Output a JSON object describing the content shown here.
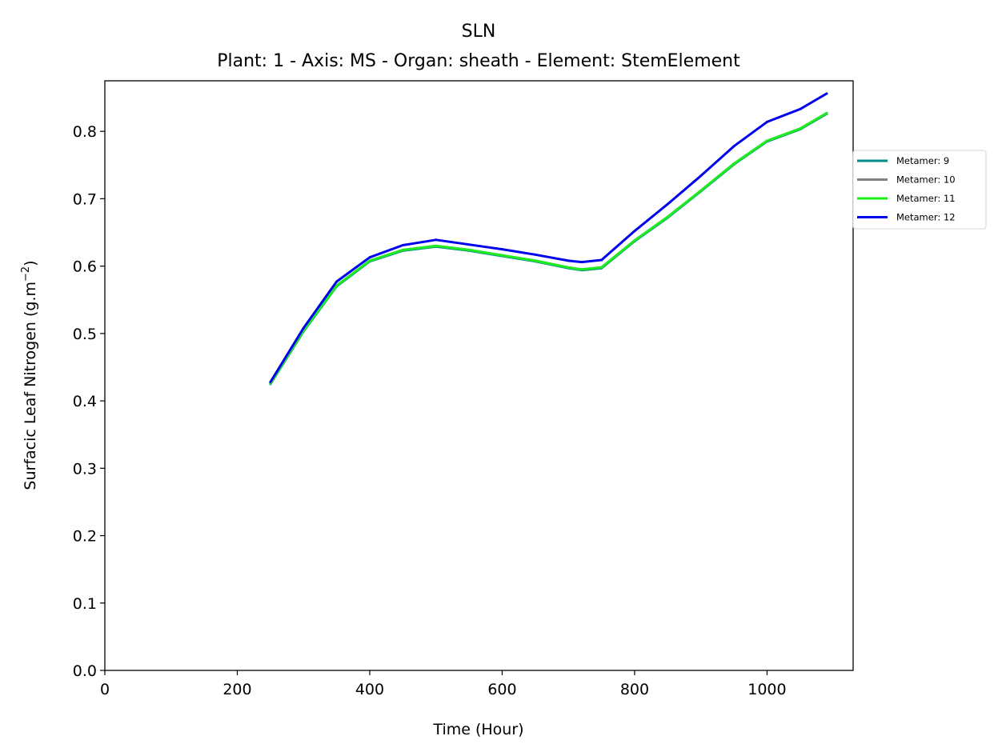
{
  "chart_data": {
    "type": "line",
    "title": "SLN",
    "subtitle": "Plant: 1 - Axis: MS - Organ: sheath - Element: StemElement",
    "xlabel": "Time (Hour)",
    "ylabel_main": "Surfacic Leaf Nitrogen (g.m",
    "ylabel_sup": "−2",
    "ylabel_end": ")",
    "xlim": [
      0,
      1130
    ],
    "ylim": [
      0,
      0.875
    ],
    "xticks": [
      0,
      200,
      400,
      600,
      800,
      1000
    ],
    "yticks": [
      0.0,
      0.1,
      0.2,
      0.3,
      0.4,
      0.5,
      0.6,
      0.7,
      0.8
    ],
    "xtick_labels": [
      "0",
      "200",
      "400",
      "600",
      "800",
      "1000"
    ],
    "ytick_labels": [
      "0.0",
      "0.1",
      "0.2",
      "0.3",
      "0.4",
      "0.5",
      "0.6",
      "0.7",
      "0.8"
    ],
    "grid": false,
    "legend_position": "outside right, upper",
    "x": [
      250,
      300,
      350,
      400,
      450,
      500,
      550,
      600,
      650,
      700,
      720,
      750,
      800,
      850,
      900,
      950,
      1000,
      1050,
      1090
    ],
    "series": [
      {
        "name": "Metamer: 9",
        "color": "#008b8b",
        "values": [
          0.425,
          0.503,
          0.57,
          0.607,
          0.623,
          0.629,
          0.623,
          0.615,
          0.607,
          0.597,
          0.594,
          0.597,
          0.637,
          0.672,
          0.711,
          0.751,
          0.785,
          0.803,
          0.826
        ]
      },
      {
        "name": "Metamer: 10",
        "color": "#808080",
        "values": [
          0.426,
          0.504,
          0.571,
          0.608,
          0.624,
          0.63,
          0.624,
          0.616,
          0.608,
          0.598,
          0.595,
          0.598,
          0.638,
          0.673,
          0.712,
          0.752,
          0.786,
          0.804,
          0.827
        ]
      },
      {
        "name": "Metamer: 11",
        "color": "#1ced1c",
        "values": [
          0.426,
          0.504,
          0.571,
          0.608,
          0.624,
          0.63,
          0.624,
          0.616,
          0.608,
          0.598,
          0.595,
          0.598,
          0.638,
          0.673,
          0.712,
          0.752,
          0.786,
          0.804,
          0.827
        ]
      },
      {
        "name": "Metamer: 12",
        "color": "#0000ee",
        "values": [
          0.428,
          0.508,
          0.577,
          0.613,
          0.631,
          0.639,
          0.632,
          0.625,
          0.617,
          0.608,
          0.606,
          0.609,
          0.652,
          0.692,
          0.734,
          0.778,
          0.814,
          0.833,
          0.856
        ]
      }
    ]
  }
}
